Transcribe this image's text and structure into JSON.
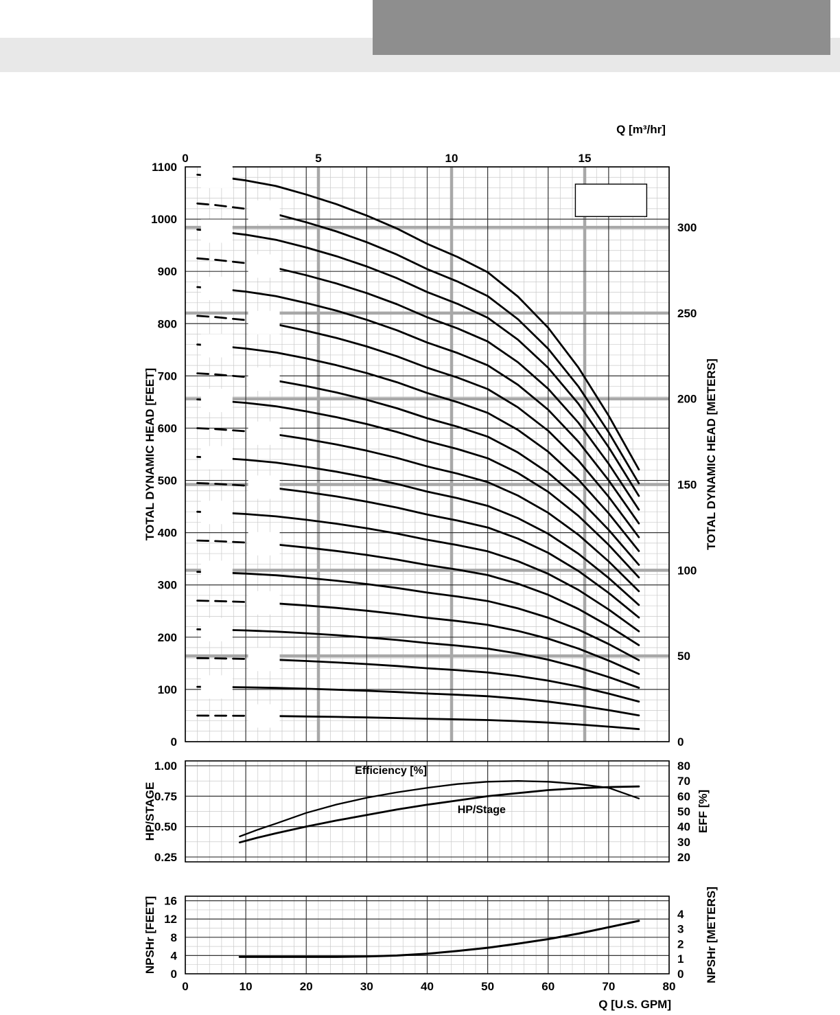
{
  "header": {
    "dark_block_color": "#8e8e8e",
    "light_band_color": "#e8e8e8"
  },
  "chart_data": {
    "type": "line",
    "x_axis": {
      "label": "Q [U.S. GPM]",
      "min": 0,
      "max": 80,
      "major_tick_step": 10,
      "minor_tick_step": 2,
      "tick_labels": [
        0,
        10,
        20,
        30,
        40,
        50,
        60,
        70,
        80
      ]
    },
    "top_axis": {
      "label": "Q [m³/hr]",
      "ticks": [
        0,
        5,
        10,
        15
      ],
      "gpm_per_m3hr": 4.403
    },
    "main": {
      "ylabel_left": "TOTAL DYNAMIC HEAD [FEET]",
      "ylabel_right": "TOTAL DYNAMIC HEAD [METERS]",
      "y_left": {
        "min": 0,
        "max": 1100,
        "major_step": 100,
        "minor_step": 20,
        "tick_labels": [
          0,
          100,
          200,
          300,
          400,
          500,
          600,
          700,
          800,
          900,
          1000,
          1100
        ]
      },
      "y_right_meters": {
        "feet_per_meter": 3.2808,
        "ticks": [
          0,
          50,
          100,
          150,
          200,
          250,
          300
        ]
      },
      "curve_x_gpm": [
        2,
        5,
        10,
        15,
        20,
        25,
        30,
        35,
        40,
        45,
        50,
        55,
        60,
        65,
        70,
        75
      ],
      "head_fraction_of_shutoff": [
        1.0,
        0.997,
        0.99,
        0.98,
        0.965,
        0.948,
        0.928,
        0.905,
        0.878,
        0.855,
        0.828,
        0.785,
        0.73,
        0.66,
        0.575,
        0.48
      ],
      "series": [
        {
          "shutoff_head_ft": 1085,
          "line": "solid"
        },
        {
          "shutoff_head_ft": 1030,
          "line": "dashed-left"
        },
        {
          "shutoff_head_ft": 980,
          "line": "solid"
        },
        {
          "shutoff_head_ft": 925,
          "line": "dashed-left"
        },
        {
          "shutoff_head_ft": 870,
          "line": "solid"
        },
        {
          "shutoff_head_ft": 815,
          "line": "dashed-left"
        },
        {
          "shutoff_head_ft": 760,
          "line": "solid"
        },
        {
          "shutoff_head_ft": 705,
          "line": "dashed-left"
        },
        {
          "shutoff_head_ft": 655,
          "line": "solid"
        },
        {
          "shutoff_head_ft": 600,
          "line": "dashed-left"
        },
        {
          "shutoff_head_ft": 545,
          "line": "solid"
        },
        {
          "shutoff_head_ft": 495,
          "line": "dashed-left"
        },
        {
          "shutoff_head_ft": 440,
          "line": "solid"
        },
        {
          "shutoff_head_ft": 385,
          "line": "dashed-left"
        },
        {
          "shutoff_head_ft": 325,
          "line": "solid"
        },
        {
          "shutoff_head_ft": 270,
          "line": "dashed-left"
        },
        {
          "shutoff_head_ft": 215,
          "line": "solid"
        },
        {
          "shutoff_head_ft": 160,
          "line": "dashed-left"
        },
        {
          "shutoff_head_ft": 105,
          "line": "solid"
        },
        {
          "shutoff_head_ft": 50,
          "line": "dashed-left"
        }
      ],
      "legend_box": {
        "x_gpm": [
          64.5,
          76.3
        ],
        "y_ft": [
          1005,
          1067
        ]
      }
    },
    "power_eff": {
      "ylabel_left": "HP/STAGE",
      "ylabel_right": "EFF [%]",
      "y_left_tick_labels": [
        "1.00",
        "0.75",
        "0.50",
        "0.25"
      ],
      "y_left_tick_values": [
        1.0,
        0.75,
        0.5,
        0.25
      ],
      "y_right_ticks": [
        80,
        70,
        60,
        50,
        40,
        30,
        20
      ],
      "x": [
        9,
        12,
        15,
        20,
        25,
        30,
        35,
        40,
        45,
        50,
        55,
        60,
        65,
        70,
        75
      ],
      "series": [
        {
          "name": "Efficiency [%]",
          "axis": "right",
          "values": [
            33.5,
            38,
            42,
            49,
            54.5,
            59,
            62.5,
            65.5,
            68,
            69.5,
            70,
            69.5,
            68,
            65.5,
            58.5
          ]
        },
        {
          "name": "HP/Stage",
          "axis": "left",
          "values": [
            0.37,
            0.41,
            0.445,
            0.5,
            0.55,
            0.595,
            0.64,
            0.68,
            0.715,
            0.75,
            0.775,
            0.8,
            0.815,
            0.825,
            0.83
          ]
        }
      ]
    },
    "npsh": {
      "ylabel_left": "NPSHr [FEET]",
      "ylabel_right": "NPSHr [METERS]",
      "y_left_ticks": [
        16,
        12,
        8,
        4,
        0
      ],
      "y_right_ticks": [
        4,
        3,
        2,
        1,
        0
      ],
      "feet_per_meter": 3.2808,
      "x": [
        9,
        15,
        20,
        25,
        30,
        35,
        40,
        45,
        50,
        55,
        60,
        65,
        70,
        75
      ],
      "values": [
        3.7,
        3.7,
        3.7,
        3.7,
        3.8,
        4.0,
        4.4,
        5.0,
        5.7,
        6.6,
        7.6,
        8.8,
        10.2,
        11.6
      ]
    }
  }
}
